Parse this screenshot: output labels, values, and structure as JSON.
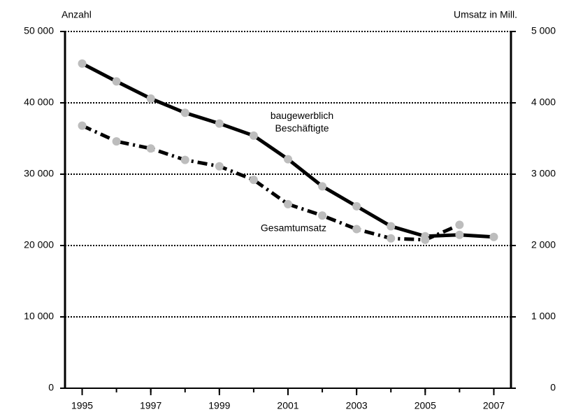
{
  "chart_data": {
    "type": "line",
    "y_label": "Anzahl",
    "y2_label": "Umsatz in Mill.",
    "x": [
      1995,
      1996,
      1997,
      1998,
      1999,
      2000,
      2001,
      2002,
      2003,
      2004,
      2005,
      2006,
      2007
    ],
    "xlim": [
      1994.5,
      2007.5
    ],
    "xticks": [
      1995,
      1997,
      1999,
      2001,
      2003,
      2005,
      2007
    ],
    "ylim": [
      0,
      50000
    ],
    "yticks": [
      0,
      {
        "value": 10000,
        "label": "10 000"
      },
      {
        "value": 20000,
        "label": "20 000"
      },
      {
        "value": 30000,
        "label": "30 000"
      },
      {
        "value": 40000,
        "label": "40 000"
      },
      {
        "value": 50000,
        "label": "50 000"
      }
    ],
    "y2lim": [
      0,
      5000
    ],
    "y2ticks": [
      0,
      {
        "value": 1000,
        "label": "1 000"
      },
      {
        "value": 2000,
        "label": "2 000"
      },
      {
        "value": 3000,
        "label": "3 000"
      },
      {
        "value": 4000,
        "label": "4 000"
      },
      {
        "value": 5000,
        "label": "5 000"
      }
    ],
    "grid": true,
    "series": [
      {
        "name": "baugewerblich Beschäftigte",
        "color": "#000000",
        "axis": "y",
        "values": [
          45500,
          43000,
          40600,
          38600,
          37100,
          35400,
          32100,
          28300,
          25500,
          22700,
          21300,
          21500,
          21200
        ]
      },
      {
        "name": "Gesamtumsatz",
        "color": "#000000",
        "axis": "y2",
        "values": [
          3680,
          3460,
          3360,
          3200,
          3110,
          2920,
          2580,
          2420,
          2230,
          2100,
          2080,
          2290,
          null
        ]
      }
    ]
  }
}
